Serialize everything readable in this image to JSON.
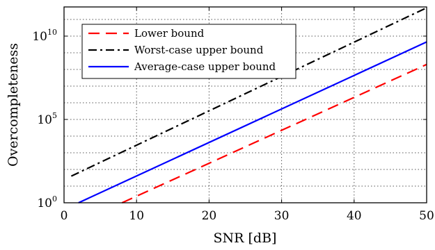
{
  "chart_data": {
    "type": "line",
    "xlabel": "SNR [dB]",
    "ylabel": "Overcompleteness",
    "xlim": [
      0,
      50
    ],
    "ylim_log10": [
      0,
      11.75
    ],
    "y_scale": "log",
    "grid": true,
    "legend_position": "top-left",
    "x_ticks": [
      0,
      10,
      20,
      30,
      40,
      50
    ],
    "x_tick_labels": [
      "0",
      "10",
      "20",
      "30",
      "40",
      "50"
    ],
    "y_ticks_log10": [
      0,
      5,
      10
    ],
    "y_tick_labels": [
      {
        "base": "10",
        "exp": "0"
      },
      {
        "base": "10",
        "exp": "5"
      },
      {
        "base": "10",
        "exp": "10"
      }
    ],
    "y_grid_log10": [
      1,
      2,
      3,
      4,
      6,
      7,
      8,
      9,
      11
    ],
    "series": [
      {
        "name": "Lower bound",
        "color": "#ff0000",
        "dash": "dashed",
        "x": [
          8,
          50
        ],
        "y_log10": [
          0,
          8.3
        ]
      },
      {
        "name": "Worst-case upper bound",
        "color": "#000000",
        "dash": "dashdot",
        "x": [
          1,
          50
        ],
        "y_log10": [
          1.6,
          11.7
        ]
      },
      {
        "name": "Average-case upper bound",
        "color": "#0000ff",
        "dash": "solid",
        "x": [
          2,
          50
        ],
        "y_log10": [
          0,
          9.65
        ]
      }
    ]
  }
}
